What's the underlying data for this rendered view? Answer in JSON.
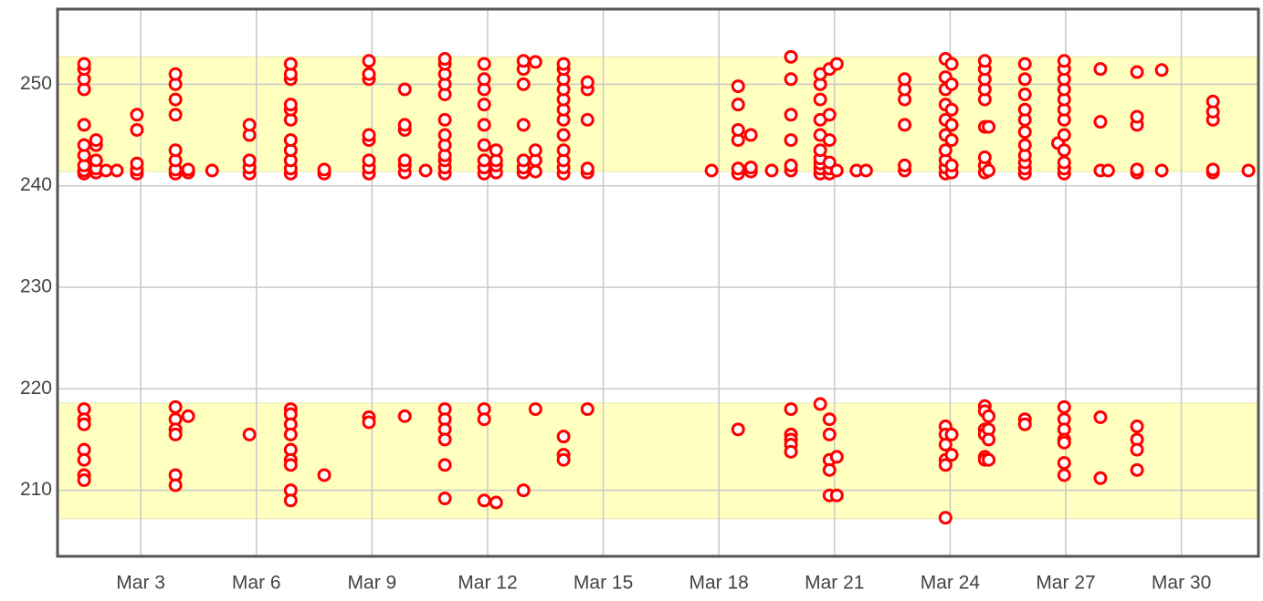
{
  "chart_data": {
    "type": "scatter",
    "color": "#ff0000",
    "xlim": [
      0.84,
      32.0
    ],
    "ylim": [
      203.5,
      257.4
    ],
    "bands": [
      [
        241.4,
        252.7
      ],
      [
        207.2,
        218.6
      ]
    ],
    "band_color": "#ffffc0",
    "grid": true,
    "xticks": [
      {
        "value": 3,
        "label": "Mar 3"
      },
      {
        "value": 6,
        "label": "Mar 6"
      },
      {
        "value": 9,
        "label": "Mar 9"
      },
      {
        "value": 12,
        "label": "Mar 12"
      },
      {
        "value": 15,
        "label": "Mar 15"
      },
      {
        "value": 18,
        "label": "Mar 18"
      },
      {
        "value": 21,
        "label": "Mar 21"
      },
      {
        "value": 24,
        "label": "Mar 24"
      },
      {
        "value": 27,
        "label": "Mar 27"
      },
      {
        "value": 30,
        "label": "Mar 30"
      }
    ],
    "yticks": [
      210,
      220,
      230,
      240,
      250
    ],
    "x": [
      1.53,
      1.53,
      1.53,
      1.53,
      1.53,
      1.53,
      1.53,
      1.53,
      1.53,
      1.53,
      1.53,
      1.53,
      1.53,
      1.53,
      1.53,
      1.53,
      1.53,
      1.84,
      1.84,
      1.84,
      1.84,
      1.84,
      2.1,
      2.38,
      2.9,
      2.9,
      2.9,
      2.9,
      2.9,
      3.9,
      3.9,
      3.9,
      3.9,
      3.9,
      3.9,
      3.9,
      3.9,
      3.9,
      3.9,
      3.9,
      3.9,
      3.9,
      3.9,
      4.23,
      4.23,
      4.23,
      4.85,
      5.82,
      5.82,
      5.82,
      5.82,
      5.82,
      5.82,
      6.89,
      6.89,
      6.89,
      6.89,
      6.89,
      6.89,
      6.89,
      6.89,
      6.89,
      6.89,
      6.89,
      6.89,
      6.89,
      6.89,
      6.89,
      6.89,
      6.89,
      6.89,
      6.89,
      6.89,
      7.76,
      7.76,
      7.76,
      8.92,
      8.92,
      8.92,
      8.92,
      8.92,
      8.92,
      8.92,
      8.92,
      8.92,
      8.92,
      9.85,
      9.85,
      9.85,
      9.85,
      9.85,
      9.85,
      9.85,
      10.39,
      10.89,
      10.89,
      10.89,
      10.89,
      10.89,
      10.89,
      10.89,
      10.89,
      10.89,
      10.89,
      10.89,
      10.89,
      10.89,
      10.89,
      10.89,
      10.89,
      10.89,
      10.89,
      11.91,
      11.91,
      11.91,
      11.91,
      11.91,
      11.91,
      11.91,
      11.91,
      11.91,
      11.91,
      11.91,
      11.91,
      12.22,
      12.22,
      12.22,
      12.22,
      12.22,
      12.93,
      12.93,
      12.93,
      12.93,
      12.93,
      12.93,
      12.93,
      12.93,
      13.24,
      13.24,
      13.24,
      13.24,
      13.24,
      13.97,
      13.97,
      13.97,
      13.97,
      13.97,
      13.97,
      13.97,
      13.97,
      13.97,
      13.97,
      13.97,
      13.97,
      13.97,
      13.97,
      13.97,
      14.59,
      14.59,
      14.59,
      14.59,
      14.59,
      14.59,
      17.81,
      18.5,
      18.5,
      18.5,
      18.5,
      18.5,
      18.5,
      18.5,
      18.83,
      18.83,
      18.83,
      19.37,
      19.87,
      19.87,
      19.87,
      19.87,
      19.87,
      19.87,
      19.87,
      19.87,
      19.87,
      19.87,
      19.87,
      20.63,
      20.63,
      20.63,
      20.63,
      20.63,
      20.63,
      20.63,
      20.63,
      20.63,
      20.63,
      20.63,
      20.87,
      20.87,
      20.87,
      20.87,
      20.87,
      20.87,
      20.87,
      20.87,
      20.87,
      20.87,
      20.87,
      21.06,
      21.06,
      21.06,
      21.06,
      21.57,
      21.82,
      22.82,
      22.82,
      22.82,
      22.82,
      22.82,
      22.82,
      23.88,
      23.88,
      23.88,
      23.88,
      23.88,
      23.88,
      23.88,
      23.88,
      23.88,
      23.88,
      23.88,
      23.88,
      23.88,
      23.88,
      23.88,
      23.88,
      24.04,
      24.04,
      24.04,
      24.04,
      24.04,
      24.04,
      24.04,
      24.04,
      24.04,
      24.9,
      24.9,
      24.9,
      24.9,
      24.9,
      24.9,
      24.9,
      24.9,
      24.9,
      24.9,
      24.9,
      24.9,
      24.9,
      24.9,
      24.9,
      25.0,
      25.0,
      25.0,
      25.0,
      25.0,
      25.0,
      25.94,
      25.94,
      25.94,
      25.94,
      25.94,
      25.94,
      25.94,
      25.94,
      25.94,
      25.94,
      25.94,
      25.94,
      25.94,
      26.8,
      26.96,
      26.96,
      26.96,
      26.96,
      26.96,
      26.96,
      26.96,
      26.96,
      26.96,
      26.96,
      26.96,
      26.96,
      26.96,
      26.96,
      26.96,
      26.96,
      26.96,
      26.96,
      26.96,
      27.9,
      27.9,
      27.9,
      27.9,
      27.9,
      28.1,
      28.85,
      28.85,
      28.85,
      28.85,
      28.85,
      28.85,
      28.85,
      28.85,
      28.85,
      29.49,
      29.49,
      30.82,
      30.82,
      30.82,
      30.82,
      30.82,
      31.74
    ],
    "values": [
      241.2,
      241.5,
      242,
      243,
      244,
      246,
      249.5,
      250.5,
      251.5,
      252,
      218,
      217,
      216.5,
      214,
      213,
      211.5,
      211,
      241.3,
      241.7,
      242.5,
      244,
      244.5,
      241.5,
      241.5,
      241.2,
      241.6,
      242.2,
      245.5,
      247,
      241.2,
      241.6,
      242.5,
      243.5,
      247,
      248.5,
      250,
      251,
      218.2,
      217,
      216,
      215.5,
      211.5,
      210.5,
      241.3,
      241.6,
      217.3,
      241.5,
      241.2,
      241.8,
      242.5,
      245,
      246,
      215.5,
      241.2,
      241.7,
      242.5,
      243.5,
      244.5,
      246.5,
      247.5,
      248,
      250.5,
      251,
      252,
      218,
      217.5,
      216.5,
      215.5,
      214,
      213,
      212.5,
      210,
      209,
      241.2,
      241.6,
      211.5,
      241.2,
      241.8,
      242.5,
      244.5,
      245,
      250.5,
      251,
      252.3,
      217.2,
      216.7,
      241.3,
      242,
      242.5,
      245.5,
      246,
      249.5,
      217.3,
      241.5,
      241.2,
      241.8,
      242.5,
      243,
      244,
      245,
      246.5,
      249,
      250,
      251,
      252,
      252.5,
      218,
      217,
      216,
      215,
      212.5,
      209.2,
      241.2,
      241.8,
      242.5,
      244,
      246,
      248,
      249.5,
      250.5,
      252,
      218,
      217,
      209,
      241.3,
      242,
      242.5,
      243.5,
      208.8,
      241.3,
      241.8,
      242.5,
      246,
      250,
      251.5,
      252.3,
      210,
      241.4,
      242.5,
      243.5,
      252.2,
      218,
      241.2,
      241.8,
      242.5,
      243.5,
      245,
      246.5,
      247.5,
      248.5,
      249.5,
      250.5,
      251.5,
      252,
      215.3,
      213.5,
      213,
      241.3,
      241.7,
      246.5,
      249.5,
      250.2,
      218,
      241.5,
      241.2,
      241.7,
      244.5,
      245.5,
      248,
      249.8,
      216,
      241.4,
      241.8,
      245,
      241.5,
      241.5,
      242,
      244.5,
      247,
      250.5,
      252.7,
      218,
      215.5,
      215,
      214.5,
      213.8,
      241.2,
      241.7,
      242.2,
      242.7,
      243.5,
      245,
      246.5,
      248.5,
      250,
      251,
      218.5,
      241.2,
      241.7,
      242.3,
      244.5,
      247,
      251.5,
      217,
      215.5,
      213,
      212,
      209.5,
      241.5,
      252,
      213.3,
      209.5,
      241.5,
      241.5,
      241.5,
      242,
      246,
      248.5,
      249.5,
      250.5,
      241.2,
      241.8,
      242.5,
      243.5,
      245,
      246.5,
      248,
      249.5,
      250.7,
      252.5,
      216.3,
      215.5,
      214.5,
      213,
      212.5,
      207.3,
      241.3,
      242,
      244.5,
      246,
      247.5,
      250,
      252,
      215.5,
      213.5,
      241.3,
      242,
      242.8,
      245.8,
      248.5,
      249.5,
      250.5,
      251.5,
      252.3,
      218.3,
      217.8,
      216,
      215.5,
      213.3,
      213,
      241.5,
      245.8,
      217.3,
      216,
      215,
      213,
      241.2,
      241.7,
      242.3,
      243,
      244,
      245.3,
      246.5,
      247.5,
      249,
      250.5,
      252,
      217,
      216.5,
      244.2,
      241.2,
      241.7,
      242.3,
      243.5,
      245,
      246.5,
      247.5,
      248.5,
      249.5,
      250.5,
      251.5,
      252.3,
      218.2,
      217,
      216,
      215,
      214.7,
      212.7,
      211.5,
      241.5,
      246.3,
      251.5,
      217.2,
      211.2,
      241.5,
      241.3,
      241.6,
      246,
      246.8,
      251.2,
      216.3,
      215,
      214,
      212,
      241.5,
      251.4,
      241.3,
      241.6,
      246.5,
      247.3,
      248.3,
      241.5
    ]
  }
}
